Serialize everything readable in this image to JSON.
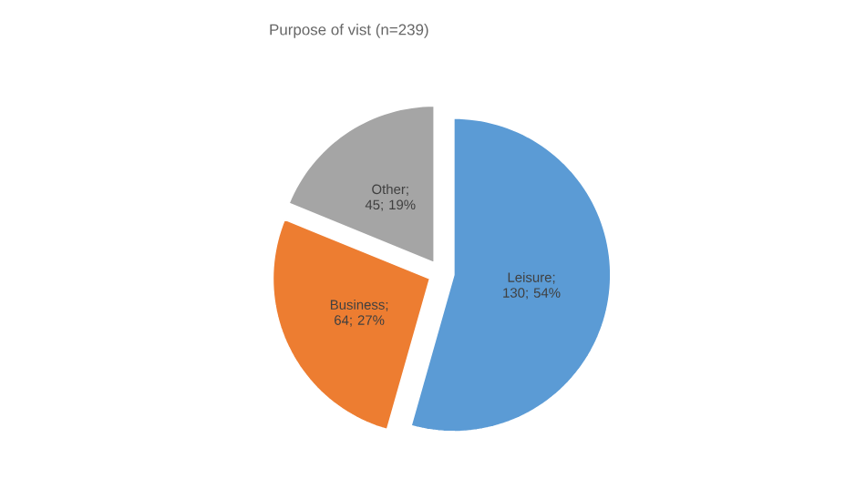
{
  "chart_data": {
    "type": "pie",
    "title": "Purpose of vist (n=239)",
    "categories": [
      "Leisure",
      "Business",
      "Other"
    ],
    "values": [
      130,
      64,
      45
    ],
    "colors": [
      "#5b9bd5",
      "#ed7d31",
      "#a5a5a5"
    ],
    "value_labels": [
      "; 130; 54%",
      "; 64; 27%",
      "; 45; 19%"
    ]
  }
}
